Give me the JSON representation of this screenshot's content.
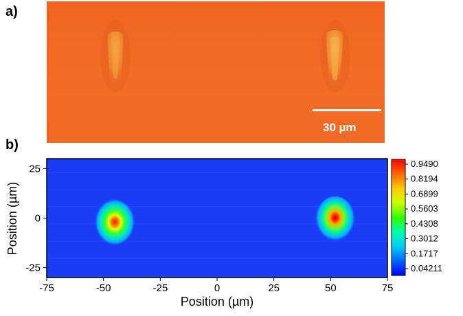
{
  "panels": {
    "a_label": "a)",
    "b_label": "b)"
  },
  "micrograph": {
    "background_color": "#f26a24",
    "scale_bar_text": "30  µm",
    "scale_bar_color": "#ffffff"
  },
  "chart_data": {
    "type": "heatmap",
    "xlabel": "Position (µm)",
    "ylabel": "Position (µm)",
    "xlim": [
      -75,
      75
    ],
    "ylim": [
      -30,
      30
    ],
    "x_ticks": [
      "-75",
      "-50",
      "-25",
      "0",
      "25",
      "50",
      "75"
    ],
    "y_ticks": [
      "25",
      "0",
      "-25"
    ],
    "spots": [
      {
        "x": -45,
        "y": -2,
        "peak": 0.9
      },
      {
        "x": 52,
        "y": -1,
        "peak": 0.95
      }
    ],
    "colorbar_labels": [
      "0.9490",
      "0.8194",
      "0.6899",
      "0.5603",
      "0.4308",
      "0.3012",
      "0.1717",
      "0.04211"
    ],
    "colormap": [
      "#0000ff",
      "#0066ff",
      "#00ccff",
      "#00ffaa",
      "#33ff00",
      "#ccff00",
      "#ffcc00",
      "#ff6600",
      "#ff0000"
    ],
    "background_color": "#1a3cf5"
  }
}
